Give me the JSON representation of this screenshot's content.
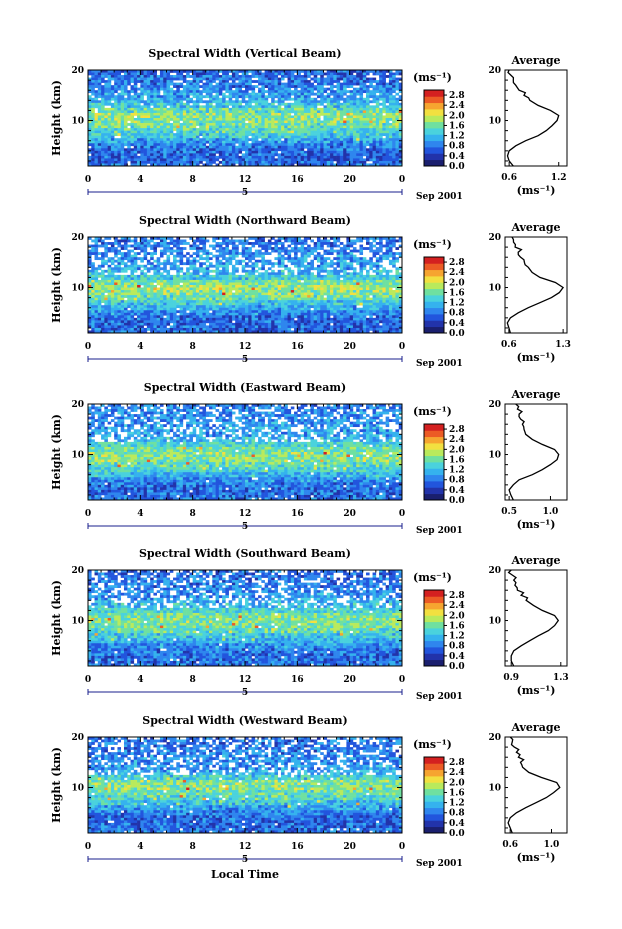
{
  "colors": {
    "colormap": [
      "#1a1f6e",
      "#2233aa",
      "#2255dd",
      "#2f86ee",
      "#35b2ee",
      "#4ad2dd",
      "#6fe0a0",
      "#b9ea5c",
      "#f2e040",
      "#f6a530",
      "#ec5b25",
      "#d42020"
    ],
    "frame": "#000000",
    "empty": "#ffffff"
  },
  "figure": {
    "xlabel": "Local Time",
    "date_label": "Sep 2001",
    "day_label": "5",
    "ylabel": "Height (km)",
    "colorbar_unit": "(ms⁻¹)",
    "avg_title": "Average",
    "avg_unit": "(ms⁻¹)"
  },
  "chart_data": [
    {
      "type": "heatmap",
      "title": "Spectral Width (Vertical Beam)",
      "x_ticks": [
        "0",
        "4",
        "8",
        "12",
        "16",
        "20",
        "0"
      ],
      "xlim": [
        0,
        24
      ],
      "y_ticks": [
        "20",
        "10"
      ],
      "ylim": [
        1,
        20
      ],
      "colorbar_ticks": [
        "2.8",
        "2.4",
        "2.0",
        "1.6",
        "1.2",
        "0.8",
        "0.4",
        "0.0"
      ],
      "colorbar_range": [
        0,
        3.0
      ],
      "profile": {
        "title": "Average",
        "x_ticks": [
          "0.6",
          "1.2"
        ],
        "xlim": [
          0.55,
          1.3
        ],
        "heights": [
          1,
          2,
          3,
          4,
          5,
          6,
          7,
          8,
          9,
          10,
          11,
          12,
          13,
          14,
          15,
          16,
          17,
          18,
          19,
          20
        ],
        "values": [
          0.65,
          0.6,
          0.58,
          0.6,
          0.68,
          0.8,
          0.95,
          1.05,
          1.12,
          1.18,
          1.2,
          1.1,
          0.95,
          0.85,
          0.78,
          0.72,
          0.68,
          0.65,
          0.62,
          0.6
        ]
      }
    },
    {
      "type": "heatmap",
      "title": "Spectral Width (Northward Beam)",
      "x_ticks": [
        "0",
        "4",
        "8",
        "12",
        "16",
        "20",
        "0"
      ],
      "xlim": [
        0,
        24
      ],
      "y_ticks": [
        "20",
        "10"
      ],
      "ylim": [
        1,
        20
      ],
      "colorbar_ticks": [
        "2.8",
        "2.4",
        "2.0",
        "1.6",
        "1.2",
        "0.8",
        "0.4",
        "0.0"
      ],
      "colorbar_range": [
        0,
        3.0
      ],
      "profile": {
        "title": "Average",
        "x_ticks": [
          "0.6",
          "1.3"
        ],
        "xlim": [
          0.55,
          1.35
        ],
        "heights": [
          1,
          2,
          3,
          4,
          5,
          6,
          7,
          8,
          9,
          10,
          11,
          12,
          13,
          14,
          15,
          16,
          17,
          18,
          19,
          20
        ],
        "values": [
          0.62,
          0.6,
          0.58,
          0.62,
          0.72,
          0.85,
          1.0,
          1.15,
          1.25,
          1.3,
          1.2,
          1.0,
          0.9,
          0.85,
          0.8,
          0.75,
          0.72,
          0.68,
          0.66,
          0.64
        ]
      }
    },
    {
      "type": "heatmap",
      "title": "Spectral Width (Eastward Beam)",
      "x_ticks": [
        "0",
        "4",
        "8",
        "12",
        "16",
        "20",
        "0"
      ],
      "xlim": [
        0,
        24
      ],
      "y_ticks": [
        "20",
        "10"
      ],
      "ylim": [
        1,
        20
      ],
      "colorbar_ticks": [
        "2.8",
        "2.4",
        "2.0",
        "1.6",
        "1.2",
        "0.8",
        "0.4",
        "0.0"
      ],
      "colorbar_range": [
        0,
        3.0
      ],
      "profile": {
        "title": "Average",
        "x_ticks": [
          "0.5",
          "1.0"
        ],
        "xlim": [
          0.45,
          1.2
        ],
        "heights": [
          1,
          2,
          3,
          4,
          5,
          6,
          7,
          8,
          9,
          10,
          11,
          12,
          13,
          14,
          15,
          16,
          17,
          18,
          19,
          20
        ],
        "values": [
          0.55,
          0.52,
          0.5,
          0.55,
          0.62,
          0.78,
          0.9,
          1.0,
          1.08,
          1.1,
          1.05,
          0.9,
          0.78,
          0.7,
          0.68,
          0.66,
          0.64,
          0.62,
          0.6,
          0.58
        ]
      }
    },
    {
      "type": "heatmap",
      "title": "Spectral Width (Southward Beam)",
      "x_ticks": [
        "0",
        "4",
        "8",
        "12",
        "16",
        "20",
        "0"
      ],
      "xlim": [
        0,
        24
      ],
      "y_ticks": [
        "20",
        "10"
      ],
      "ylim": [
        1,
        20
      ],
      "colorbar_ticks": [
        "2.8",
        "2.4",
        "2.0",
        "1.6",
        "1.2",
        "0.8",
        "0.4",
        "0.0"
      ],
      "colorbar_range": [
        0,
        3.0
      ],
      "profile": {
        "title": "Average",
        "x_ticks": [
          "0.9",
          "1.3"
        ],
        "xlim": [
          0.85,
          1.35
        ],
        "heights": [
          1,
          2,
          3,
          4,
          5,
          6,
          7,
          8,
          9,
          10,
          11,
          12,
          13,
          14,
          15,
          16,
          17,
          18,
          19,
          20
        ],
        "values": [
          0.92,
          0.9,
          0.9,
          0.92,
          0.98,
          1.05,
          1.12,
          1.2,
          1.25,
          1.28,
          1.25,
          1.15,
          1.08,
          1.02,
          0.98,
          0.95,
          0.93,
          0.92,
          0.91,
          0.9
        ]
      }
    },
    {
      "type": "heatmap",
      "title": "Spectral Width (Westward Beam)",
      "x_ticks": [
        "0",
        "4",
        "8",
        "12",
        "16",
        "20",
        "0"
      ],
      "xlim": [
        0,
        24
      ],
      "y_ticks": [
        "20",
        "10"
      ],
      "ylim": [
        1,
        20
      ],
      "colorbar_ticks": [
        "2.8",
        "2.4",
        "2.0",
        "1.6",
        "1.2",
        "0.8",
        "0.4",
        "0.0"
      ],
      "colorbar_range": [
        0,
        3.0
      ],
      "profile": {
        "title": "Average",
        "x_ticks": [
          "0.6",
          "1.0"
        ],
        "xlim": [
          0.55,
          1.15
        ],
        "heights": [
          1,
          2,
          3,
          4,
          5,
          6,
          7,
          8,
          9,
          10,
          11,
          12,
          13,
          14,
          15,
          16,
          17,
          18,
          19,
          20
        ],
        "values": [
          0.62,
          0.6,
          0.58,
          0.6,
          0.66,
          0.75,
          0.85,
          0.95,
          1.02,
          1.08,
          1.05,
          0.9,
          0.78,
          0.72,
          0.7,
          0.68,
          0.66,
          0.64,
          0.62,
          0.6
        ]
      }
    }
  ]
}
